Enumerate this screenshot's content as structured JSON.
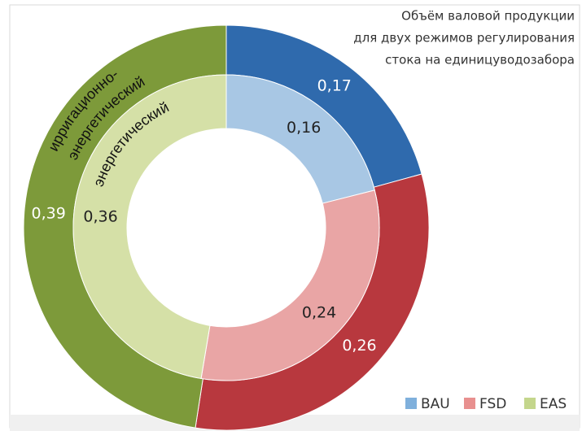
{
  "chart_data": {
    "type": "double-donut",
    "title": [
      "Объём валовой продукции",
      "для двух режимов регулирования",
      "стока на единицуводозабора"
    ],
    "categories": [
      "BAU",
      "FSD",
      "EAS"
    ],
    "legend_colors": [
      "#7fb0dc",
      "#e8908f",
      "#c4d68c"
    ],
    "series": [
      {
        "name": [
          "ирригационно-",
          "энергетический"
        ],
        "values": [
          0.17,
          0.26,
          0.39
        ],
        "value_labels": [
          "0,17",
          "0,26",
          "0,39"
        ],
        "colors": [
          "#2f6aad",
          "#b8383e",
          "#7d9a3a"
        ]
      },
      {
        "name": [
          "энергетический"
        ],
        "values": [
          0.16,
          0.24,
          0.36
        ],
        "value_labels": [
          "0,16",
          "0,24",
          "0,36"
        ],
        "colors": [
          "#a8c7e4",
          "#e9a5a5",
          "#d5e0a7"
        ]
      }
    ],
    "legend": "bottom-right"
  }
}
